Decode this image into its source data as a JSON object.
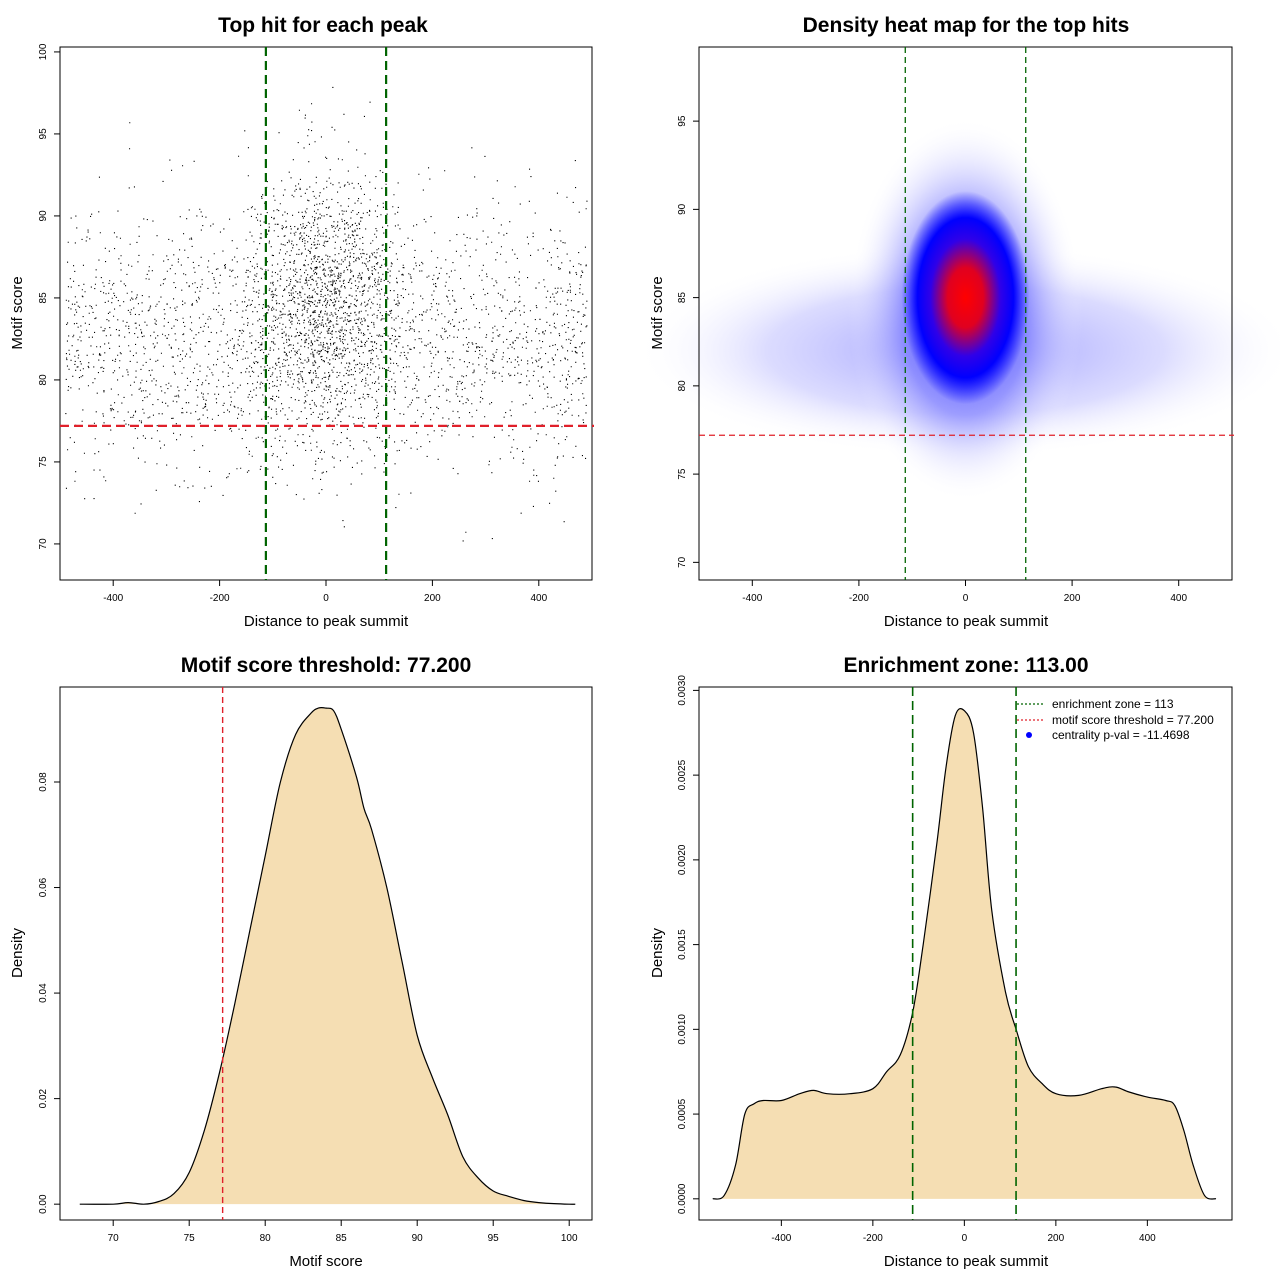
{
  "colors": {
    "points": "#000000",
    "threshold_line": "#e0202a",
    "zone_line": "#006400",
    "density_fill": "#f5deb3",
    "density_line": "#000000",
    "heat_low": "#ffffff",
    "heat_mid": "#0000ff",
    "heat_high": "#ff0000",
    "legend_dot": "#0000ff"
  },
  "chart_data": [
    {
      "type": "scatter",
      "title": "Top hit for each peak",
      "xlabel": "Distance to peak summit",
      "ylabel": "Motif score",
      "xlim": [
        -500,
        500
      ],
      "ylim": [
        67.8,
        100.3
      ],
      "xticks": [
        "-400",
        "-200",
        "0",
        "200",
        "400"
      ],
      "xtick_values": [
        -400,
        -200,
        0,
        200,
        400
      ],
      "yticks": [
        "70",
        "75",
        "80",
        "85",
        "90",
        "95",
        "100"
      ],
      "ytick_values": [
        70,
        75,
        80,
        85,
        90,
        95,
        100
      ],
      "grid": false,
      "n_points_approx": 13000,
      "point_distribution": {
        "background": {
          "x_range": [
            -490,
            490
          ],
          "y_mean": 82.5,
          "y_sd": 4
        },
        "central_cluster": {
          "x_mean": 0,
          "x_sd": 70,
          "y_mean": 85,
          "y_sd": 4
        }
      },
      "reference_lines": {
        "vertical": [
          -113,
          113
        ],
        "horizontal": [
          77.2
        ]
      }
    },
    {
      "type": "heatmap",
      "title": "Density heat map for the top hits",
      "xlabel": "Distance to peak summit",
      "ylabel": "Motif score",
      "xlim": [
        -500,
        500
      ],
      "ylim": [
        69.0,
        99.2
      ],
      "xticks": [
        "-400",
        "-200",
        "0",
        "200",
        "400"
      ],
      "xtick_values": [
        -400,
        -200,
        0,
        200,
        400
      ],
      "yticks": [
        "70",
        "75",
        "80",
        "85",
        "90",
        "95"
      ],
      "ytick_values": [
        70,
        75,
        80,
        85,
        90,
        95
      ],
      "grid": false,
      "density_peak": {
        "x": 0,
        "y": 85
      },
      "reference_lines": {
        "vertical": [
          -113,
          113
        ],
        "horizontal": [
          77.2
        ]
      }
    },
    {
      "type": "area",
      "title": "Motif score threshold: 77.200",
      "xlabel": "Motif score",
      "ylabel": "Density",
      "xlim": [
        66.5,
        101.5
      ],
      "ylim": [
        -0.003,
        0.098
      ],
      "xticks": [
        "70",
        "75",
        "80",
        "85",
        "90",
        "95",
        "100"
      ],
      "xtick_values": [
        70,
        75,
        80,
        85,
        90,
        95,
        100
      ],
      "yticks": [
        "0.00",
        "0.02",
        "0.04",
        "0.06",
        "0.08"
      ],
      "ytick_values": [
        0,
        0.02,
        0.04,
        0.06,
        0.08
      ],
      "grid": false,
      "x": [
        67.8,
        70,
        71,
        72,
        73,
        74,
        75,
        76,
        77,
        78,
        79,
        80,
        81,
        82,
        83,
        83.5,
        84,
        84.5,
        85,
        86,
        86.5,
        87,
        88,
        89,
        90,
        91,
        92,
        93,
        94,
        95,
        96,
        97,
        98,
        99,
        100,
        100.4
      ],
      "y": [
        0,
        0,
        0.0003,
        0,
        0.0005,
        0.002,
        0.006,
        0.014,
        0.025,
        0.038,
        0.052,
        0.066,
        0.08,
        0.089,
        0.093,
        0.094,
        0.094,
        0.0935,
        0.09,
        0.081,
        0.075,
        0.071,
        0.06,
        0.046,
        0.032,
        0.024,
        0.017,
        0.009,
        0.005,
        0.0025,
        0.0015,
        0.0007,
        0.0003,
        0.0001,
        0,
        0
      ],
      "reference_lines": {
        "vertical": [
          77.2
        ]
      }
    },
    {
      "type": "area",
      "title": "Enrichment zone: 113.00",
      "xlabel": "Distance to peak summit",
      "ylabel": "Density",
      "xlim": [
        -580,
        585
      ],
      "ylim": [
        -0.000125,
        0.00302
      ],
      "xticks": [
        "-400",
        "-200",
        "0",
        "200",
        "400"
      ],
      "xtick_values": [
        -400,
        -200,
        0,
        200,
        400
      ],
      "yticks": [
        "0.0000",
        "0.0005",
        "0.0010",
        "0.0015",
        "0.0020",
        "0.0025",
        "0.0030"
      ],
      "ytick_values": [
        0,
        0.0005,
        0.001,
        0.0015,
        0.002,
        0.0025,
        0.003
      ],
      "grid": false,
      "x": [
        -550,
        -525,
        -500,
        -480,
        -460,
        -440,
        -400,
        -360,
        -330,
        -300,
        -250,
        -200,
        -170,
        -140,
        -113,
        -90,
        -60,
        -40,
        -20,
        0,
        20,
        40,
        60,
        90,
        113,
        140,
        170,
        200,
        250,
        300,
        330,
        360,
        400,
        440,
        460,
        480,
        500,
        525,
        550
      ],
      "y": [
        0,
        2e-05,
        0.0002,
        0.0005,
        0.00056,
        0.00058,
        0.00058,
        0.00062,
        0.00064,
        0.00062,
        0.00062,
        0.00065,
        0.00075,
        0.00085,
        0.0011,
        0.0015,
        0.0021,
        0.00255,
        0.00285,
        0.00288,
        0.00275,
        0.0023,
        0.0017,
        0.00122,
        0.001,
        0.00078,
        0.00068,
        0.00062,
        0.00061,
        0.00065,
        0.00066,
        0.00063,
        0.0006,
        0.00058,
        0.00055,
        0.0004,
        0.0002,
        2e-05,
        0
      ],
      "reference_lines": {
        "vertical": [
          -113,
          113
        ]
      },
      "legend": {
        "position": "top-right",
        "entries": [
          {
            "label": "enrichment zone = 113",
            "style": "dotted-line",
            "color": "#006400"
          },
          {
            "label": "motif score threshold = 77.200",
            "style": "dotted-line",
            "color": "#e0202a"
          },
          {
            "label": "centrality p-val = -11.4698",
            "style": "dot",
            "color": "#0000ff"
          }
        ]
      }
    }
  ]
}
